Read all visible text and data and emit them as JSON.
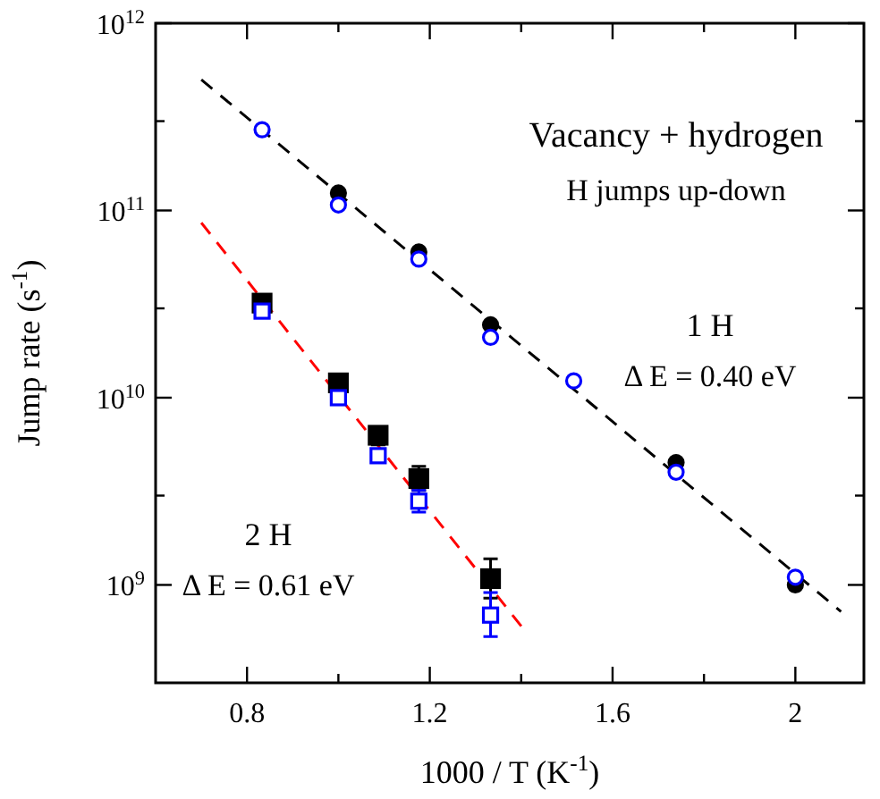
{
  "chart_data": {
    "type": "scatter",
    "xlabel": "1000 / T  (K$^{-1}$)",
    "ylabel": "Jump rate (s$^{-1}$)",
    "log": "y",
    "grid": false,
    "xlim": [
      0.6,
      2.15
    ],
    "ylim": [
      300000000.0,
      1000000000000.0
    ],
    "xticks": [
      0.8,
      {
        "value": 1.0,
        "label": null
      },
      1.2,
      {
        "value": 1.4,
        "label": null
      },
      1.6,
      {
        "value": 1.8,
        "label": null
      },
      2
    ],
    "yticks": [
      {
        "value": 1000000000.0,
        "label": "10$^{9}$"
      },
      {
        "value": 3000000000.0,
        "label": null
      },
      {
        "value": 10000000000.0,
        "label": "10$^{10}$"
      },
      {
        "value": 30000000000.0,
        "label": null
      },
      {
        "value": 100000000000.0,
        "label": "10$^{11}$"
      },
      {
        "value": 300000000000.0,
        "label": null
      },
      {
        "value": 1000000000000.0,
        "label": "10$^{12}$"
      }
    ],
    "annotations": [
      "Vacancy + hydrogen",
      "H  jumps up-down",
      "1 H",
      "Δ E = 0.40 eV",
      "2 H",
      "Δ E = 0.61 eV"
    ],
    "series": [
      {
        "marker": "circle",
        "color": "#000000",
        "x": [
          1.0,
          1.176,
          1.333,
          1.739,
          2.0
        ],
        "values": [
          124000000000.0,
          60000000000.0,
          24500000000.0,
          4500000000.0,
          1000000000.0
        ]
      },
      {
        "marker": "circle",
        "color": "#0000ff",
        "x": [
          0.833,
          1.0,
          1.176,
          1.333,
          1.515,
          1.739,
          2.0
        ],
        "values": [
          270000000000.0,
          107000000000.0,
          55000000000.0,
          21000000000.0,
          12300000000.0,
          4000000000.0,
          1100000000.0
        ]
      },
      {
        "marker": "square",
        "color": "#000000",
        "x": [
          0.833,
          1.0,
          1.087,
          1.176,
          1.333
        ],
        "values": [
          32000000000.0,
          12000000000.0,
          6300000000.0,
          3700000000.0,
          1080000000.0
        ],
        "errors": [
          null,
          null,
          [
            5600000000.0,
            6800000000.0
          ],
          [
            3200000000.0,
            4300000000.0
          ],
          [
            850000000.0,
            1380000000.0
          ]
        ]
      },
      {
        "marker": "square",
        "color": "#0000ff",
        "x": [
          0.833,
          1.0,
          1.087,
          1.176,
          1.333
        ],
        "values": [
          29000000000.0,
          10000000000.0,
          4900000000.0,
          2800000000.0,
          690000000.0
        ],
        "errors": [
          null,
          null,
          null,
          [
            2450000000.0,
            3200000000.0
          ],
          [
            530000000.0,
            910000000.0
          ]
        ]
      },
      {
        "type": "line",
        "line_style": "dashed",
        "color": "#000000",
        "x": [
          0.7,
          2.1
        ],
        "values": [
          500000000000.0,
          720000000.0
        ]
      },
      {
        "type": "line",
        "line_style": "dashed",
        "color": "#ff0000",
        "x": [
          0.7,
          1.403
        ],
        "values": [
          86000000000.0,
          590000000.0
        ]
      }
    ]
  }
}
